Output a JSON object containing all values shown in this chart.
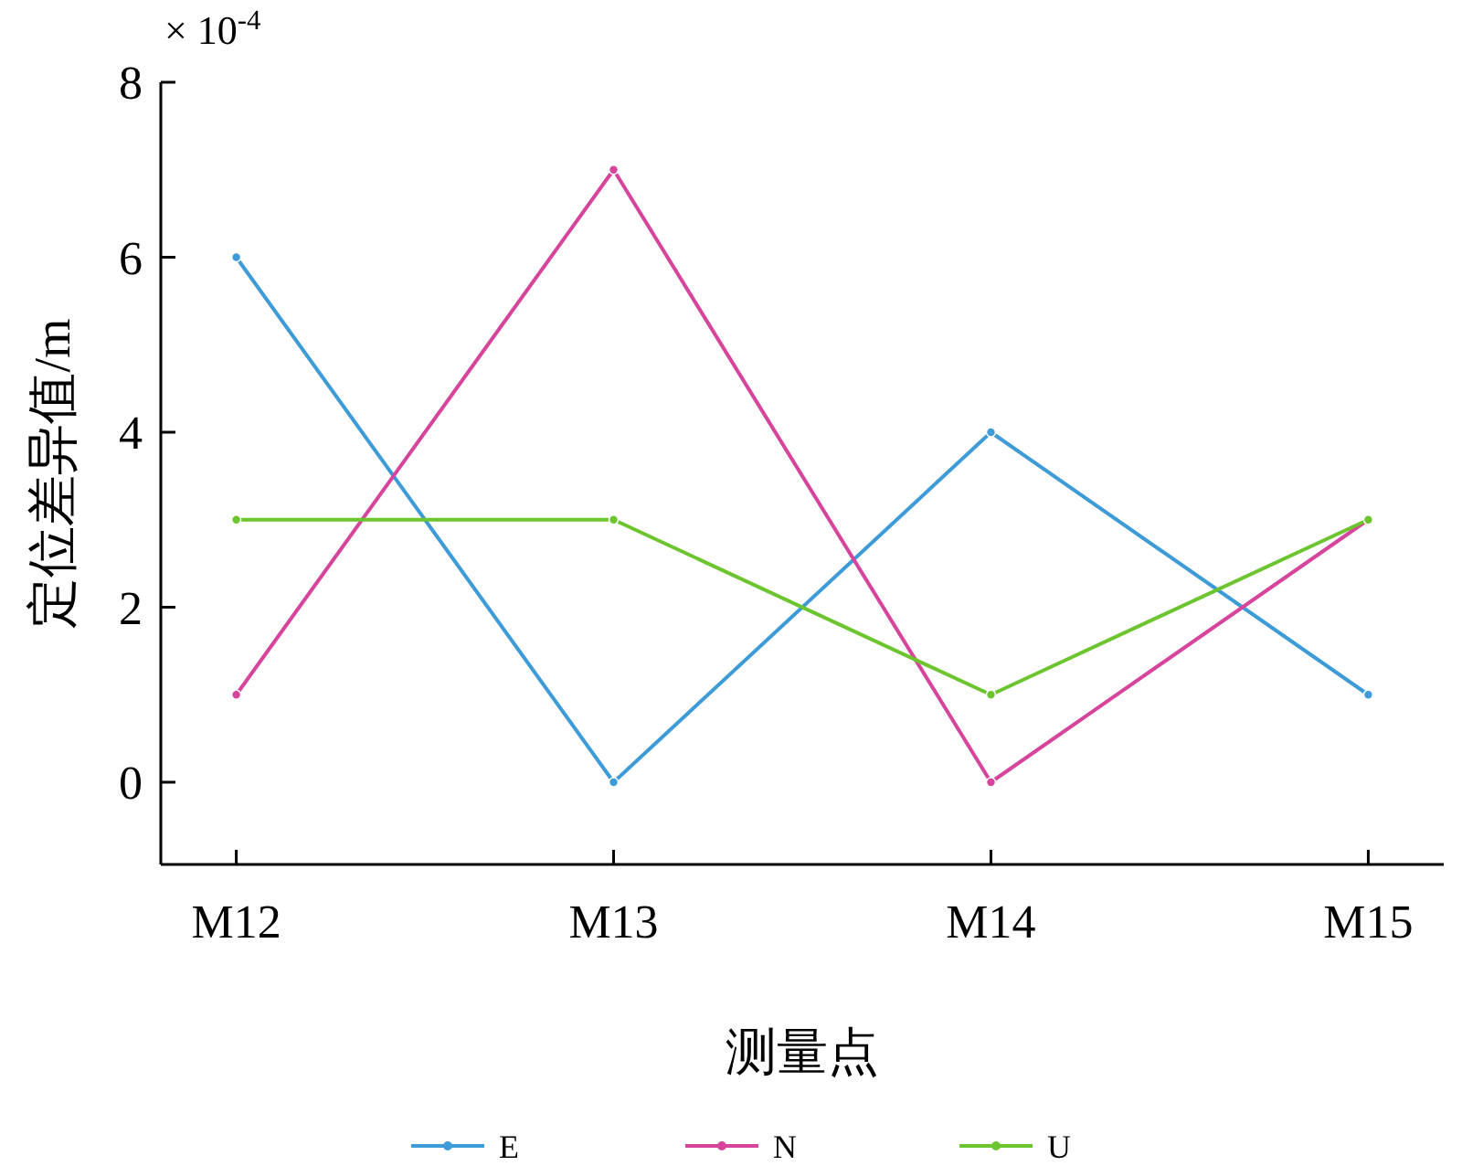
{
  "chart_data": {
    "type": "line",
    "xlabel": "测量点",
    "ylabel": "定位差异值/m",
    "annotations": [
      "× 10$^{-4}$"
    ],
    "categories": [
      "M12",
      "M13",
      "M14",
      "M15"
    ],
    "series": [
      {
        "name": "E",
        "color": "#3d9bd8",
        "values": [
          6,
          0,
          4,
          1
        ]
      },
      {
        "name": "N",
        "color": "#d6449b",
        "values": [
          1,
          7,
          0,
          3
        ]
      },
      {
        "name": "U",
        "color": "#6cc52f",
        "values": [
          3,
          3,
          1,
          3
        ]
      }
    ],
    "ylim": [
      -0.94,
      8
    ],
    "yticks": [
      0,
      2,
      4,
      6,
      8
    ],
    "grid": false,
    "legend": "bottom",
    "marker": "circle",
    "line_style": "solid"
  }
}
